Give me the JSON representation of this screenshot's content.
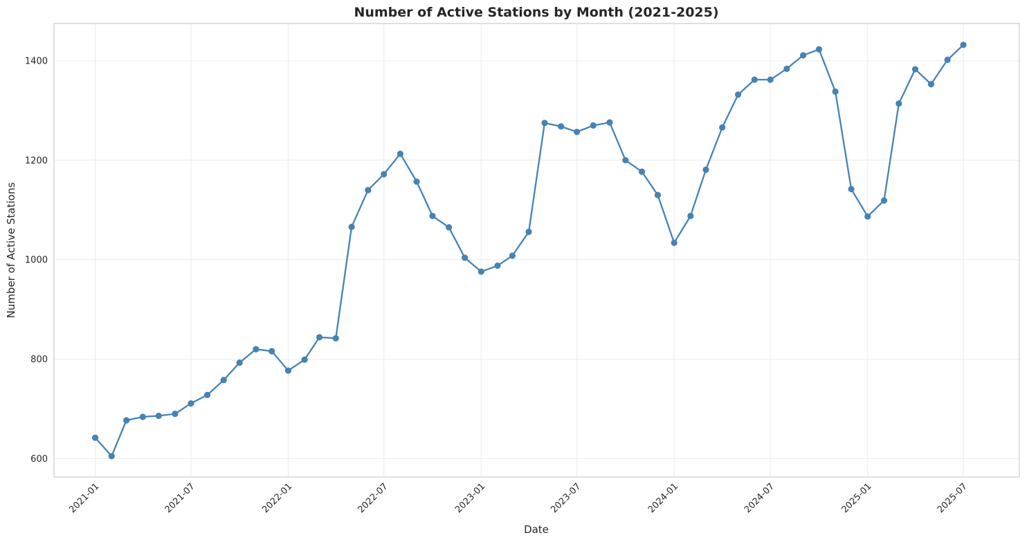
{
  "chart_data": {
    "type": "line",
    "title": "Number of Active Stations by Month (2021-2025)",
    "xlabel": "Date",
    "ylabel": "Number of Active Stations",
    "x_ticks": [
      "2021-01",
      "2021-07",
      "2022-01",
      "2022-07",
      "2023-01",
      "2023-07",
      "2024-01",
      "2024-07",
      "2025-01",
      "2025-07"
    ],
    "y_ticks": [
      600,
      800,
      1000,
      1200,
      1400
    ],
    "ylim": [
      563,
      1475
    ],
    "xlim": [
      "2020-10-15",
      "2025-10-15"
    ],
    "grid": true,
    "legend": false,
    "line_color": "#4682b4",
    "series": [
      {
        "x": [
          "2021-01",
          "2021-02",
          "2021-03",
          "2021-04",
          "2021-05",
          "2021-06",
          "2021-07",
          "2021-08",
          "2021-09",
          "2021-10",
          "2021-11",
          "2021-12",
          "2022-01",
          "2022-02",
          "2022-03",
          "2022-04",
          "2022-05",
          "2022-06",
          "2022-07",
          "2022-08",
          "2022-09",
          "2022-10",
          "2022-11",
          "2022-12",
          "2023-01",
          "2023-02",
          "2023-03",
          "2023-04",
          "2023-05",
          "2023-06",
          "2023-07",
          "2023-08",
          "2023-09",
          "2023-10",
          "2023-11",
          "2023-12",
          "2024-01",
          "2024-02",
          "2024-03",
          "2024-04",
          "2024-05",
          "2024-06",
          "2024-07",
          "2024-08",
          "2024-09",
          "2024-10",
          "2024-11",
          "2024-12",
          "2025-01",
          "2025-02",
          "2025-03",
          "2025-04",
          "2025-05",
          "2025-06",
          "2025-07"
        ],
        "values": [
          642,
          605,
          677,
          684,
          686,
          690,
          711,
          728,
          758,
          793,
          820,
          816,
          777,
          799,
          844,
          842,
          1066,
          1140,
          1172,
          1213,
          1157,
          1088,
          1065,
          1004,
          976,
          988,
          1008,
          1056,
          1275,
          1268,
          1257,
          1270,
          1276,
          1200,
          1177,
          1130,
          1034,
          1088,
          1181,
          1266,
          1332,
          1362,
          1362,
          1384,
          1411,
          1423,
          1338,
          1142,
          1087,
          1119,
          1314,
          1383,
          1353,
          1402,
          1432
        ]
      }
    ]
  }
}
